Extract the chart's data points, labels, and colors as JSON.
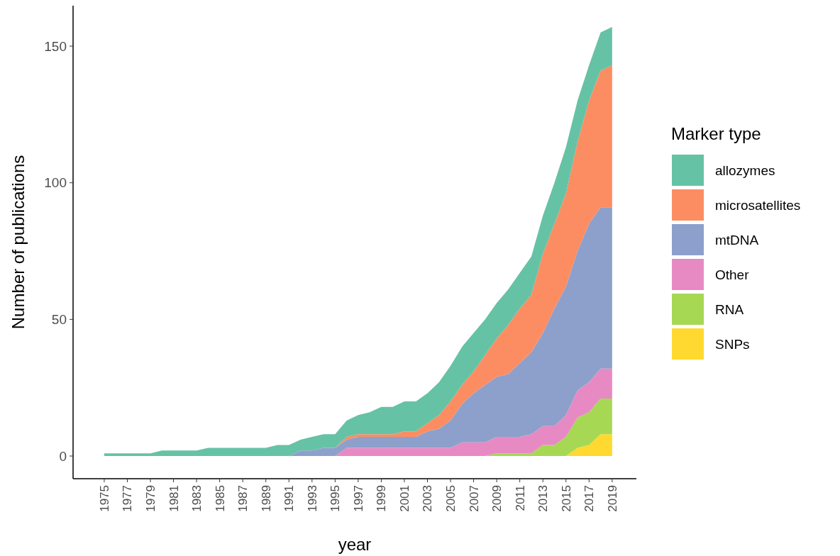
{
  "chart_data": {
    "type": "area",
    "stacked": true,
    "xlabel": "year",
    "ylabel": "Number of publications",
    "legend_title": "Marker type",
    "legend": "right",
    "grid": false,
    "x": [
      1975,
      1976,
      1977,
      1978,
      1979,
      1980,
      1981,
      1982,
      1983,
      1984,
      1985,
      1986,
      1987,
      1988,
      1989,
      1990,
      1991,
      1992,
      1993,
      1994,
      1995,
      1996,
      1997,
      1998,
      1999,
      2000,
      2001,
      2002,
      2003,
      2004,
      2005,
      2006,
      2007,
      2008,
      2009,
      2010,
      2011,
      2012,
      2013,
      2014,
      2015,
      2016,
      2017,
      2018,
      2019
    ],
    "xlim": [
      1972.3,
      2021.1
    ],
    "xticks": [
      1975,
      1977,
      1979,
      1981,
      1983,
      1985,
      1987,
      1989,
      1991,
      1993,
      1995,
      1997,
      1999,
      2001,
      2003,
      2005,
      2007,
      2009,
      2011,
      2013,
      2015,
      2017,
      2019
    ],
    "ylim": [
      -8.3,
      164.8
    ],
    "yticks": [
      0,
      50,
      100,
      150
    ],
    "series": [
      {
        "name": "SNPs",
        "color": "#ffd92f",
        "values": [
          0,
          0,
          0,
          0,
          0,
          0,
          0,
          0,
          0,
          0,
          0,
          0,
          0,
          0,
          0,
          0,
          0,
          0,
          0,
          0,
          0,
          0,
          0,
          0,
          0,
          0,
          0,
          0,
          0,
          0,
          0,
          0,
          0,
          0,
          0,
          0,
          0,
          0,
          0,
          0,
          0,
          3,
          4,
          8,
          8
        ]
      },
      {
        "name": "RNA",
        "color": "#a6d854",
        "values": [
          0,
          0,
          0,
          0,
          0,
          0,
          0,
          0,
          0,
          0,
          0,
          0,
          0,
          0,
          0,
          0,
          0,
          0,
          0,
          0,
          0,
          0,
          0,
          0,
          0,
          0,
          0,
          0,
          0,
          0,
          0,
          0,
          0,
          0,
          1,
          1,
          1,
          1,
          4,
          4,
          7,
          11,
          12,
          13,
          13
        ]
      },
      {
        "name": "Other",
        "color": "#e78ac3",
        "values": [
          0,
          0,
          0,
          0,
          0,
          0,
          0,
          0,
          0,
          0,
          0,
          0,
          0,
          0,
          0,
          0,
          0,
          0,
          0,
          0,
          0,
          3,
          3,
          3,
          3,
          3,
          3,
          3,
          3,
          3,
          3,
          5,
          5,
          5,
          6,
          6,
          6,
          7,
          7,
          7,
          8,
          10,
          11,
          11,
          11
        ]
      },
      {
        "name": "mtDNA",
        "color": "#8da0cb",
        "values": [
          0,
          0,
          0,
          0,
          0,
          0,
          0,
          0,
          0,
          0,
          0,
          0,
          0,
          0,
          0,
          0,
          0,
          2,
          2,
          3,
          3,
          3,
          4,
          4,
          4,
          4,
          4,
          4,
          6,
          7,
          10,
          14,
          18,
          21,
          22,
          23,
          27,
          30,
          34,
          43,
          47,
          51,
          58,
          59,
          59
        ]
      },
      {
        "name": "microsatellites",
        "color": "#fc8d62",
        "values": [
          0,
          0,
          0,
          0,
          0,
          0,
          0,
          0,
          0,
          0,
          0,
          0,
          0,
          0,
          0,
          0,
          0,
          0,
          0,
          0,
          0,
          1,
          1,
          1,
          1,
          1,
          2,
          2,
          3,
          5,
          7,
          7,
          8,
          11,
          14,
          18,
          20,
          21,
          29,
          31,
          34,
          40,
          45,
          50,
          52
        ]
      },
      {
        "name": "allozymes",
        "color": "#66c2a5",
        "values": [
          1,
          1,
          1,
          1,
          1,
          2,
          2,
          2,
          2,
          3,
          3,
          3,
          3,
          3,
          3,
          4,
          4,
          4,
          5,
          5,
          5,
          6,
          7,
          8,
          10,
          10,
          11,
          11,
          11,
          12,
          13,
          14,
          14,
          13,
          13,
          13,
          13,
          14,
          14,
          15,
          17,
          15,
          13,
          14,
          14
        ]
      }
    ]
  }
}
